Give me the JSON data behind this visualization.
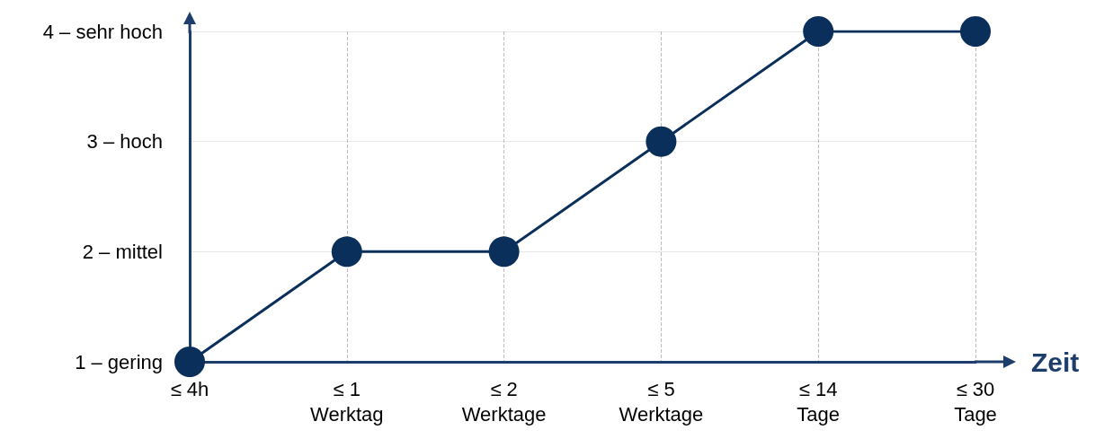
{
  "chart_data": {
    "type": "line",
    "xlabel": "Zeit",
    "categories": [
      "≤ 4h",
      "≤ 1\nWerktag",
      "≤ 2\nWerktage",
      "≤ 5\nWerktage",
      "≤ 14\nTage",
      "≤ 30\nTage"
    ],
    "series": [
      {
        "color": "#0b2f5b",
        "values": [
          1,
          2,
          2,
          3,
          4,
          4
        ]
      }
    ],
    "ylim": [
      1,
      4
    ],
    "yticks": [
      {
        "value": 1,
        "label": "1 – gering"
      },
      {
        "value": 2,
        "label": "2 – mittel"
      },
      {
        "value": 3,
        "label": "3 – hoch"
      },
      {
        "value": 4,
        "label": "4 – sehr hoch"
      }
    ],
    "grid": true,
    "marker": "circle",
    "line_style": "solid"
  }
}
